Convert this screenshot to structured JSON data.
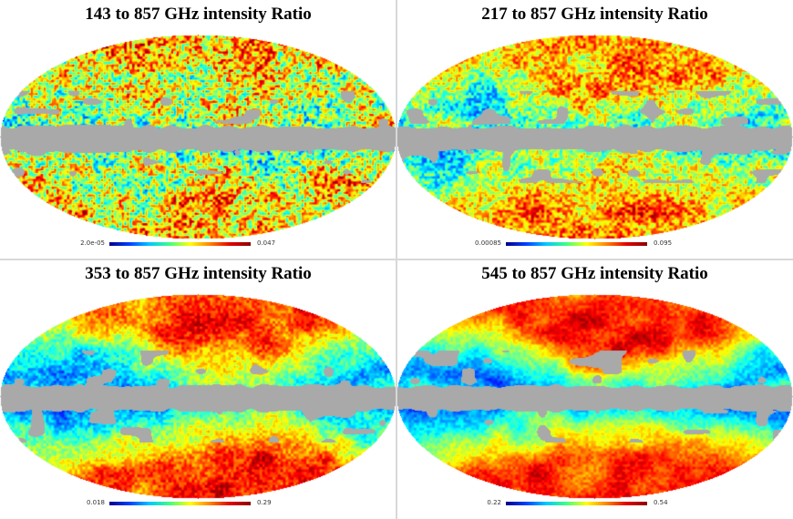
{
  "panels": [
    {
      "title": "143 to 857 GHz intensity Ratio",
      "min_label": "2.0e-05",
      "max_label": "0.047",
      "smoothness": 0.15,
      "bias": 0.55
    },
    {
      "title": "217 to 857 GHz intensity Ratio",
      "min_label": "0.00085",
      "max_label": "0.095",
      "smoothness": 0.45,
      "bias": 0.5
    },
    {
      "title": "353 to 857 GHz intensity Ratio",
      "min_label": "0.018",
      "max_label": "0.29",
      "smoothness": 0.7,
      "bias": 0.45
    },
    {
      "title": "545 to 857 GHz intensity Ratio",
      "min_label": "0.22",
      "max_label": "0.54",
      "smoothness": 0.8,
      "bias": 0.45
    }
  ],
  "colors": {
    "mask": "#a9a9a9",
    "outside": "#ffffff"
  }
}
